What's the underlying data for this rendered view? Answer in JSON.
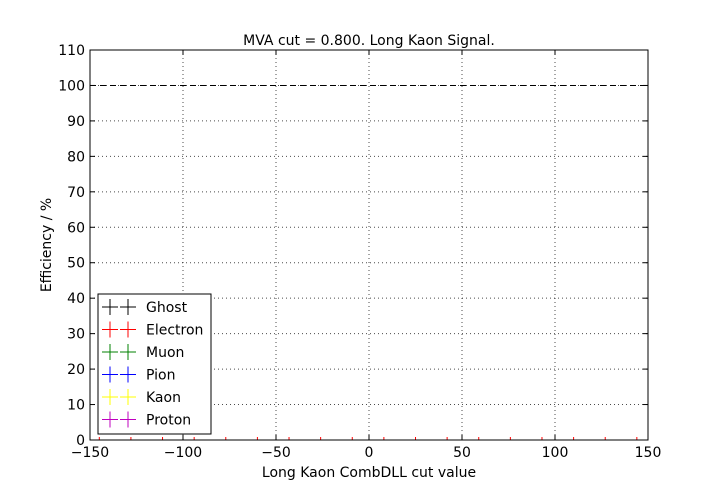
{
  "chart_data": {
    "type": "scatter",
    "title": "MVA cut = 0.800. Long Kaon Signal.",
    "xlabel": "Long Kaon CombDLL cut value",
    "ylabel": "Efficiency / %",
    "xlim": [
      -150,
      150
    ],
    "ylim": [
      0,
      110
    ],
    "xticks": [
      -150,
      -100,
      -50,
      0,
      50,
      100,
      150
    ],
    "xtick_labels": [
      "−150",
      "−100",
      "−50",
      "0",
      "50",
      "100",
      "150"
    ],
    "yticks": [
      0,
      10,
      20,
      30,
      40,
      50,
      60,
      70,
      80,
      90,
      100,
      110
    ],
    "ytick_labels": [
      "0",
      "10",
      "20",
      "30",
      "40",
      "50",
      "60",
      "70",
      "80",
      "90",
      "100",
      "110"
    ],
    "grid": true,
    "reference_line": {
      "y": 100,
      "style": "dashed",
      "color": "#000000"
    },
    "legend_position": "bottom-left",
    "series": [
      {
        "name": "Ghost",
        "color": "#000000",
        "points": []
      },
      {
        "name": "Electron",
        "color": "#ff0000",
        "points": []
      },
      {
        "name": "Muon",
        "color": "#008000",
        "points": []
      },
      {
        "name": "Pion",
        "color": "#0000ff",
        "points": []
      },
      {
        "name": "Kaon",
        "color": "#ffff00",
        "points": []
      },
      {
        "name": "Proton",
        "color": "#bf00bf",
        "points": []
      }
    ]
  }
}
